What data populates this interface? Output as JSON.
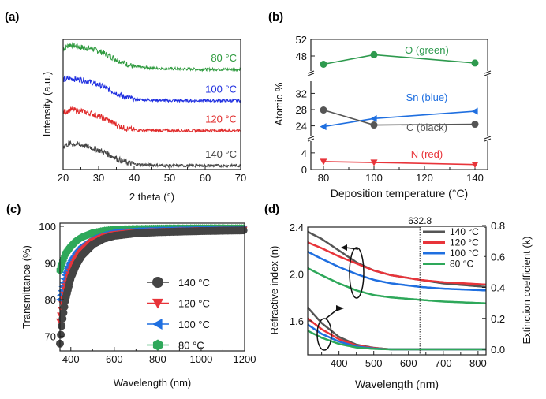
{
  "panels": {
    "a": "(a)",
    "b": "(b)",
    "c": "(c)",
    "d": "(d)"
  },
  "chart_data": [
    {
      "id": "a",
      "type": "line",
      "xlabel": "2 theta (°)",
      "ylabel": "Intensity (a.u.)",
      "xlim": [
        20,
        70
      ],
      "xticks": [
        20,
        30,
        40,
        50,
        60,
        70
      ],
      "yticks": [],
      "series": [
        {
          "name": "80 °C",
          "color": "#2e9a3e",
          "x": [
            20,
            22,
            25,
            28,
            31,
            34,
            37,
            40,
            45,
            50,
            60,
            70
          ],
          "y": [
            9.3,
            9.6,
            9.4,
            9.3,
            9.0,
            8.6,
            8.2,
            7.9,
            7.8,
            7.75,
            7.7,
            7.7
          ]
        },
        {
          "name": "100 °C",
          "color": "#1f2fe0",
          "x": [
            20,
            22,
            25,
            28,
            31,
            34,
            37,
            40,
            45,
            50,
            60,
            70
          ],
          "y": [
            6.9,
            7.0,
            6.9,
            6.7,
            6.4,
            6.0,
            5.6,
            5.4,
            5.35,
            5.3,
            5.3,
            5.3
          ]
        },
        {
          "name": "120 °C",
          "color": "#e02a2a",
          "x": [
            20,
            22,
            25,
            28,
            31,
            34,
            37,
            40,
            45,
            50,
            60,
            70
          ],
          "y": [
            4.4,
            4.6,
            4.5,
            4.3,
            4.0,
            3.6,
            3.2,
            3.05,
            3.0,
            3.0,
            3.0,
            3.0
          ]
        },
        {
          "name": "140 °C",
          "color": "#444444",
          "x": [
            20,
            22,
            25,
            28,
            31,
            34,
            37,
            40,
            45,
            50,
            60,
            70
          ],
          "y": [
            1.8,
            2.0,
            1.9,
            1.7,
            1.4,
            1.0,
            0.6,
            0.4,
            0.35,
            0.3,
            0.3,
            0.3
          ]
        }
      ]
    },
    {
      "id": "b",
      "type": "line",
      "xlabel": "Deposition temperature (°C)",
      "ylabel": "Atomic %",
      "xlim": [
        75,
        145
      ],
      "xticks": [
        80,
        100,
        120,
        140
      ],
      "y_segments": [
        {
          "range": [
            44,
            52
          ],
          "ticks": [
            48,
            52
          ]
        },
        {
          "range": [
            21,
            35
          ],
          "ticks": [
            24,
            28,
            32
          ]
        },
        {
          "range": [
            0,
            7
          ],
          "ticks": [
            0,
            4
          ]
        }
      ],
      "x": [
        80,
        100,
        140
      ],
      "series": [
        {
          "name": "O (green)",
          "color": "#2e9a4e",
          "marker": "circle",
          "segment": 0,
          "y": [
            46.0,
            48.3,
            46.3
          ]
        },
        {
          "name": "Sn (blue)",
          "color": "#1f6fe0",
          "marker": "triangle-left",
          "segment": 1,
          "y": [
            23.8,
            25.8,
            27.6
          ]
        },
        {
          "name": "C (black)",
          "color": "#555555",
          "marker": "circle",
          "segment": 1,
          "y": [
            27.9,
            24.2,
            24.4
          ]
        },
        {
          "name": "N (red)",
          "color": "#e8343a",
          "marker": "triangle-down",
          "segment": 2,
          "y": [
            1.9,
            1.7,
            1.2
          ]
        }
      ]
    },
    {
      "id": "c",
      "type": "line",
      "xlabel": "Wavelength (nm)",
      "ylabel": "Transmittance (%)",
      "xlim": [
        350,
        1200
      ],
      "ylim": [
        66,
        100
      ],
      "xticks": [
        400,
        600,
        800,
        1000,
        1200
      ],
      "yticks": [
        70,
        80,
        90,
        100
      ],
      "x": [
        350,
        360,
        375,
        400,
        425,
        450,
        500,
        550,
        600,
        700,
        800,
        1000,
        1200
      ],
      "series": [
        {
          "name": "140 °C",
          "color": "#444444",
          "marker": "circle",
          "y": [
            68,
            74,
            80,
            86,
            89.5,
            92,
            95,
            96.6,
            97.4,
            98.1,
            98.4,
            98.7,
            98.9
          ]
        },
        {
          "name": "120 °C",
          "color": "#e8343a",
          "marker": "triangle-down",
          "y": [
            74,
            78,
            83,
            88,
            91,
            93,
            95.8,
            97.1,
            97.8,
            98.4,
            98.6,
            98.9,
            99.0
          ]
        },
        {
          "name": "100 °C",
          "color": "#1f6fe0",
          "marker": "triangle-left",
          "y": [
            80,
            83,
            87,
            90.5,
            92.8,
            94.5,
            96.6,
            97.7,
            98.3,
            98.7,
            98.9,
            99.1,
            99.2
          ]
        },
        {
          "name": "80 °C",
          "color": "#2ea85a",
          "marker": "hexagon",
          "y": [
            88,
            90,
            92.5,
            94.5,
            96,
            97,
            98.2,
            98.8,
            99.1,
            99.3,
            99.4,
            99.5,
            99.5
          ]
        }
      ]
    },
    {
      "id": "d",
      "type": "line",
      "xlabel": "Wavelength (nm)",
      "ylabel": "Refractive index (n)",
      "ylabel_right": "Extinction coefficient (k)",
      "xlim": [
        310,
        823
      ],
      "ylim": [
        1.31,
        2.4
      ],
      "ylim_right": [
        -0.02,
        0.8
      ],
      "xticks": [
        400,
        500,
        600,
        700,
        800
      ],
      "yticks": [
        1.6,
        2.0,
        2.4
      ],
      "yticks_right": [
        0.0,
        0.2,
        0.4,
        0.6,
        0.8
      ],
      "annotation": "632.8",
      "annotation_x": 632.8,
      "x": [
        310,
        350,
        400,
        450,
        500,
        550,
        632.8,
        700,
        823
      ],
      "series": [
        {
          "name": "140 °C",
          "color": "#555555",
          "n": [
            2.36,
            2.3,
            2.2,
            2.1,
            2.03,
            1.99,
            1.95,
            1.92,
            1.89
          ],
          "k": [
            0.27,
            0.17,
            0.08,
            0.03,
            0.01,
            0.0,
            0.0,
            0.0,
            0.0
          ]
        },
        {
          "name": "120 °C",
          "color": "#e8343a",
          "n": [
            2.27,
            2.22,
            2.15,
            2.09,
            2.03,
            1.99,
            1.95,
            1.93,
            1.91
          ],
          "k": [
            0.2,
            0.13,
            0.065,
            0.025,
            0.008,
            0.0,
            0.0,
            0.0,
            0.0
          ]
        },
        {
          "name": "100 °C",
          "color": "#1f6fe0",
          "n": [
            2.19,
            2.13,
            2.06,
            2.0,
            1.95,
            1.92,
            1.89,
            1.875,
            1.86
          ],
          "k": [
            0.16,
            0.1,
            0.05,
            0.018,
            0.005,
            0.0,
            0.0,
            0.0,
            0.0
          ]
        },
        {
          "name": "80 °C",
          "color": "#2ea85a",
          "n": [
            2.05,
            1.99,
            1.92,
            1.86,
            1.82,
            1.8,
            1.78,
            1.765,
            1.75
          ],
          "k": [
            0.12,
            0.075,
            0.035,
            0.012,
            0.003,
            0.0,
            0.0,
            0.0,
            0.0
          ]
        }
      ]
    }
  ]
}
